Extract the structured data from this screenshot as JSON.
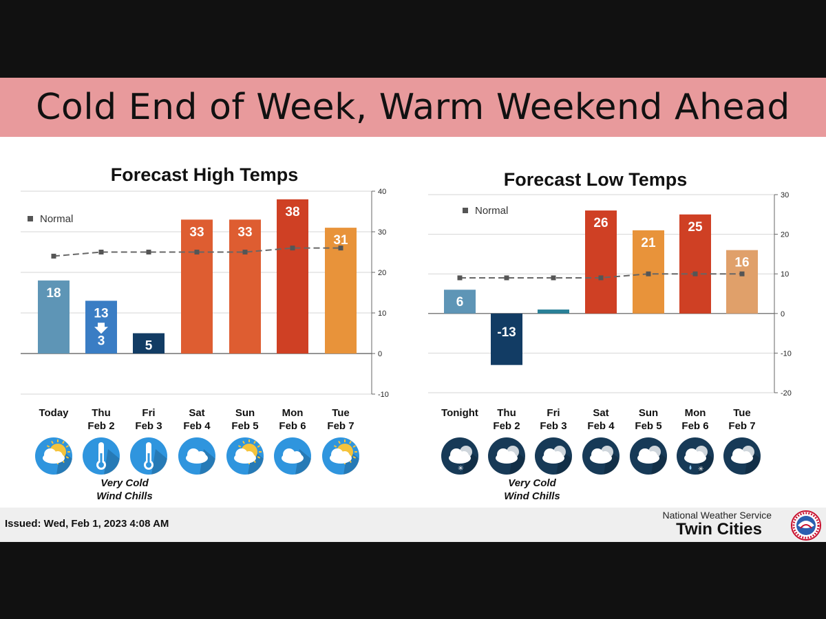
{
  "header": {
    "title": "Cold End of Week, Warm Weekend Ahead"
  },
  "footer": {
    "issued": "Issued: Wed, Feb 1, 2023 4:08 AM",
    "org": "National Weather Service",
    "office": "Twin Cities",
    "logo_text": "NATIONAL WEATHER SERVICE"
  },
  "chart_data": [
    {
      "type": "bar",
      "title": "Forecast High Temps",
      "categories": [
        [
          "Today"
        ],
        [
          "Thu",
          "Feb 2"
        ],
        [
          "Fri",
          "Feb 3"
        ],
        [
          "Sat",
          "Feb 4"
        ],
        [
          "Sun",
          "Feb 5"
        ],
        [
          "Mon",
          "Feb 6"
        ],
        [
          "Tue",
          "Feb 7"
        ]
      ],
      "values": [
        18,
        13,
        5,
        33,
        33,
        38,
        31
      ],
      "bar_colors": [
        "#5e95b6",
        "#3a7dc4",
        "#123c64",
        "#de5d31",
        "#de5d31",
        "#cf4024",
        "#e8933a"
      ],
      "normal": {
        "label": "Normal",
        "values": [
          24,
          25,
          25,
          25,
          25,
          26,
          26
        ]
      },
      "annotation": {
        "category_index": 1,
        "value": "3"
      },
      "ylim": [
        -10,
        40
      ],
      "yticks": [
        -10,
        0,
        10,
        20,
        30,
        40
      ],
      "y_axis_side": "right",
      "legend": "top-left",
      "icons": [
        "partly-sunny-icon",
        "thermometer-icon",
        "thermometer-icon",
        "cloudy-icon",
        "partly-sunny-icon",
        "cloudy-icon",
        "partly-sunny-icon"
      ],
      "note": [
        "Very Cold",
        "Wind Chills"
      ]
    },
    {
      "type": "bar",
      "title": "Forecast Low Temps",
      "categories": [
        [
          "Tonight"
        ],
        [
          "Thu",
          "Feb 2"
        ],
        [
          "Fri",
          "Feb 3"
        ],
        [
          "Sat",
          "Feb 4"
        ],
        [
          "Sun",
          "Feb 5"
        ],
        [
          "Mon",
          "Feb 6"
        ],
        [
          "Tue",
          "Feb 7"
        ]
      ],
      "values": [
        6,
        -13,
        1,
        26,
        21,
        25,
        16
      ],
      "bar_colors": [
        "#5e95b6",
        "#123c64",
        "#2a8198",
        "#cf4024",
        "#e8933a",
        "#cf4024",
        "#e0a06a"
      ],
      "normal": {
        "label": "Normal",
        "values": [
          9,
          9,
          9,
          9,
          10,
          10,
          10
        ]
      },
      "ylim": [
        -20,
        30
      ],
      "yticks": [
        -20,
        -10,
        0,
        10,
        20,
        30
      ],
      "y_axis_side": "right",
      "legend": "top-left",
      "icons": [
        "snow-cloudy-night-icon",
        "cloudy-night-icon",
        "cloudy-night-icon",
        "cloudy-night-icon",
        "cloudy-night-icon",
        "rain-snow-night-icon",
        "cloudy-night-icon"
      ],
      "note": [
        "Very Cold",
        "Wind Chills"
      ]
    }
  ],
  "colors": {
    "title_bar": "#e89a9c",
    "icon_day": "#2f95de",
    "icon_night": "#173a57",
    "normal_line": "#666666"
  }
}
